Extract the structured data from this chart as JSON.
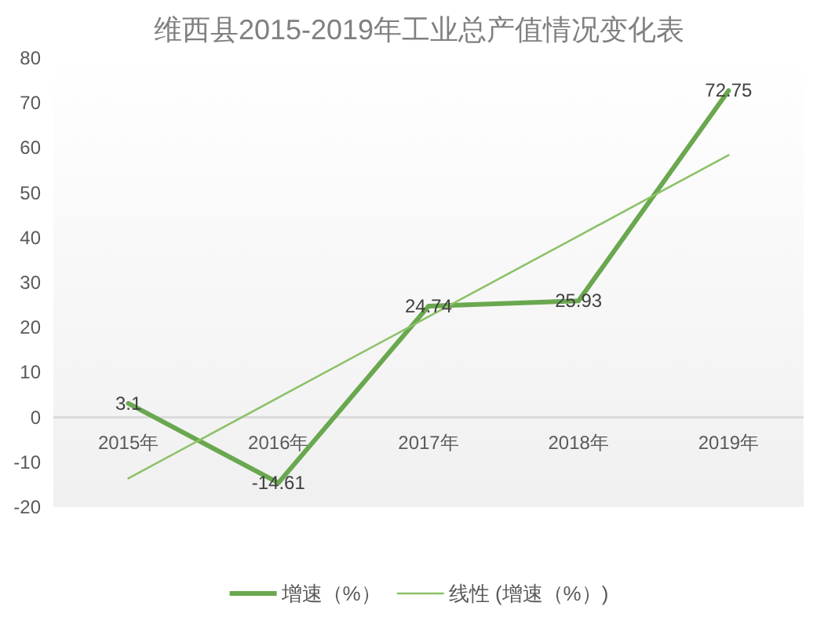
{
  "chart_data": {
    "type": "line",
    "title": "维西县2015-2019年工业总产值情况变化表",
    "categories": [
      "2015年",
      "2016年",
      "2017年",
      "2018年",
      "2019年"
    ],
    "series": [
      {
        "name": "增速（%）",
        "color": "#6aa84f",
        "values": [
          3.1,
          -14.61,
          24.74,
          25.93,
          72.75
        ],
        "value_labels": [
          "3.1",
          "-14.61",
          "24.74",
          "25.93",
          "72.75"
        ]
      },
      {
        "name": "线性 (增速（%）)",
        "color": "#8cc168",
        "values": [
          -13.6,
          4.4,
          22.4,
          40.4,
          58.4
        ]
      }
    ],
    "ylim": [
      -20,
      80
    ],
    "yticks": [
      -20,
      -10,
      0,
      10,
      20,
      30,
      40,
      50,
      60,
      70,
      80
    ],
    "legend": "bottom"
  }
}
